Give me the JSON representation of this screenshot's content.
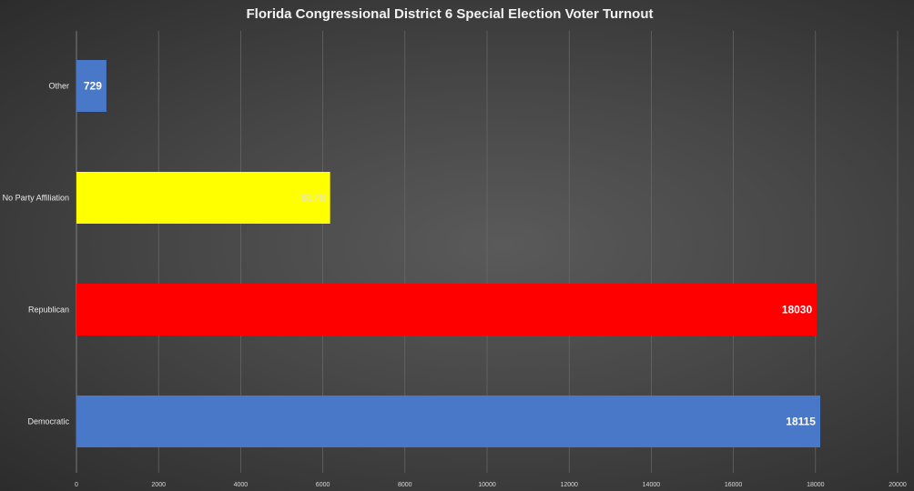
{
  "chart_data": {
    "type": "bar",
    "orientation": "horizontal",
    "title": "Florida Congressional District 6 Special Election Voter Turnout",
    "categories": [
      "Other",
      "No Party Affiliation",
      "Republican",
      "Democratic"
    ],
    "values": [
      729,
      6178,
      18030,
      18115
    ],
    "colors": [
      "#4a78c8",
      "#ffff00",
      "#ff0000",
      "#4a78c8"
    ],
    "label_colors": [
      "#ffffff",
      "#e8e8b0",
      "#ffffff",
      "#ffffff"
    ],
    "xlim": [
      0,
      20000
    ],
    "xticks": [
      0,
      2000,
      4000,
      6000,
      8000,
      10000,
      12000,
      14000,
      16000,
      18000,
      20000
    ],
    "grid": true,
    "legend": "none",
    "xlabel": "",
    "ylabel": ""
  }
}
